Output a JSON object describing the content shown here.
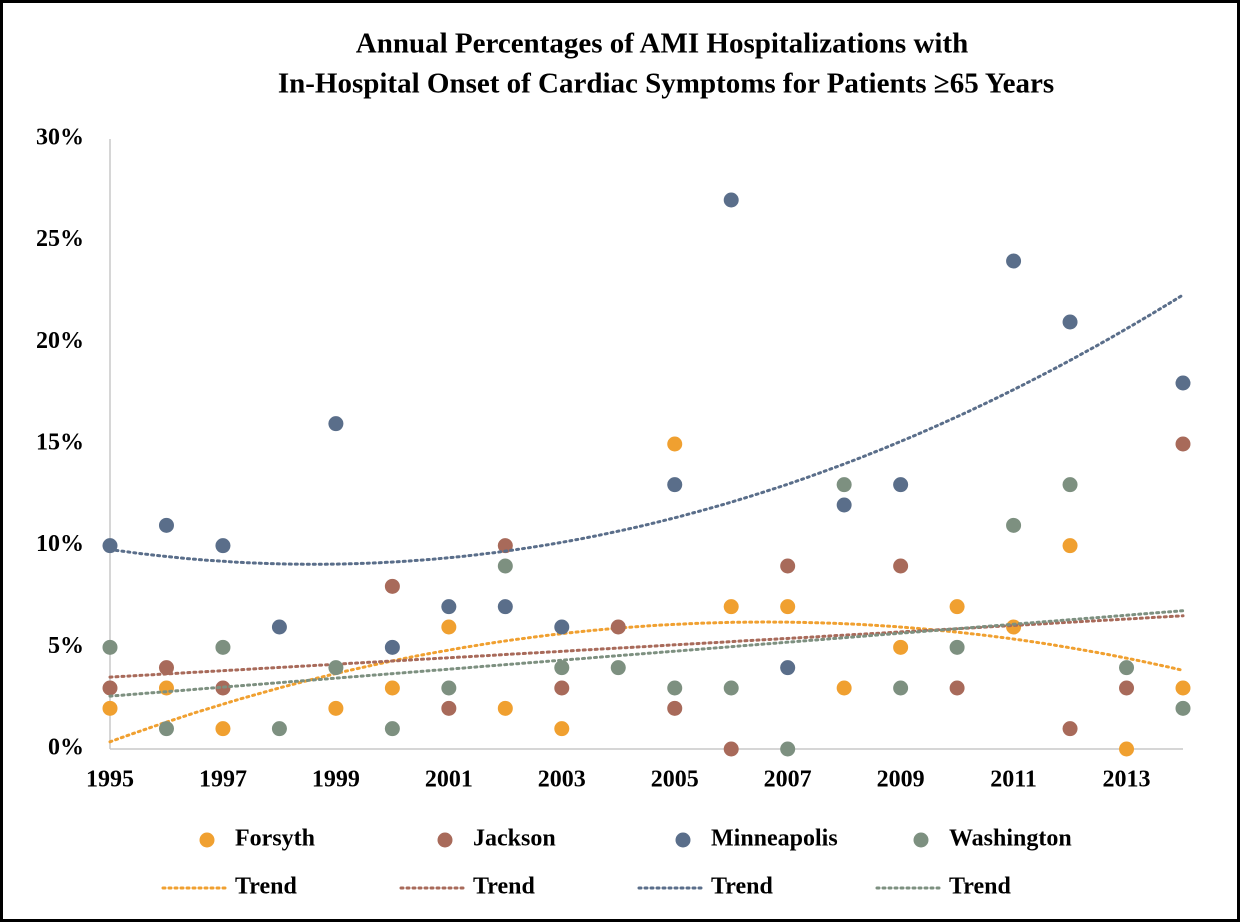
{
  "chart_data": {
    "type": "scatter",
    "title": [
      "Annual Percentages of AMI Hospitalizations with",
      "In-Hospital Onset of Cardiac Symptoms for Patients ≥65 Years"
    ],
    "x": [
      1995,
      1996,
      1997,
      1998,
      1999,
      2000,
      2001,
      2002,
      2003,
      2004,
      2005,
      2006,
      2007,
      2008,
      2009,
      2010,
      2011,
      2012,
      2013,
      2014
    ],
    "xlim": [
      1995,
      2014
    ],
    "xticks": [
      1995,
      1997,
      1999,
      2001,
      2003,
      2005,
      2007,
      2009,
      2011,
      2013
    ],
    "ylim": [
      0,
      30
    ],
    "yticks": [
      {
        "value": 0,
        "label": "0%"
      },
      {
        "value": 5,
        "label": "5%"
      },
      {
        "value": 10,
        "label": "10%"
      },
      {
        "value": 15,
        "label": "15%"
      },
      {
        "value": 20,
        "label": "20%"
      },
      {
        "value": 25,
        "label": "25%"
      },
      {
        "value": 30,
        "label": "30%"
      }
    ],
    "grid": false,
    "series": [
      {
        "name": "Forsyth",
        "color": "#f0a030",
        "trend": {
          "name": "Trend",
          "order": 2
        },
        "values": [
          2,
          3,
          1,
          null,
          2,
          3,
          6,
          2,
          1,
          null,
          15,
          7,
          7,
          3,
          5,
          7,
          6,
          10,
          0,
          3
        ]
      },
      {
        "name": "Jackson",
        "color": "#a86a5a",
        "trend": {
          "name": "Trend",
          "order": 1
        },
        "values": [
          3,
          4,
          3,
          null,
          null,
          8,
          2,
          10,
          3,
          6,
          2,
          0,
          9,
          null,
          9,
          3,
          null,
          1,
          3,
          15
        ]
      },
      {
        "name": "Minneapolis",
        "color": "#5a6e8a",
        "trend": {
          "name": "Trend",
          "order": 2
        },
        "values": [
          10,
          11,
          10,
          6,
          16,
          5,
          7,
          7,
          6,
          null,
          13,
          27,
          4,
          12,
          13,
          null,
          24,
          21,
          null,
          18
        ]
      },
      {
        "name": "Washington",
        "color": "#7d9080",
        "trend": {
          "name": "Trend",
          "order": 1
        },
        "values": [
          5,
          1,
          5,
          1,
          4,
          1,
          3,
          9,
          4,
          4,
          3,
          3,
          0,
          13,
          3,
          5,
          11,
          13,
          4,
          2
        ]
      }
    ]
  }
}
